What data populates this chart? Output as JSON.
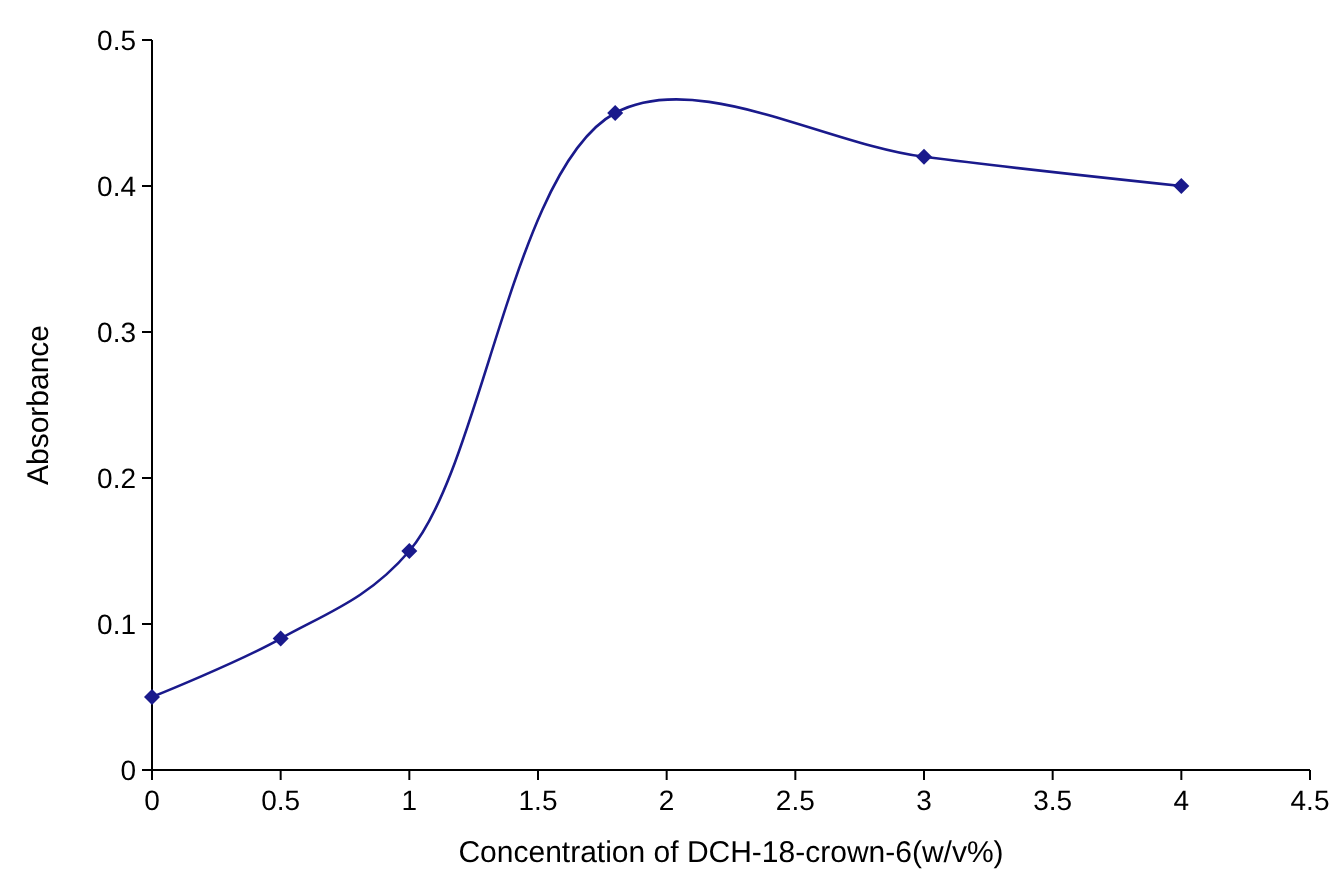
{
  "chart_data": {
    "type": "line",
    "xlabel": "Concentration of DCH-18-crown-6(w/v%)",
    "ylabel": "Absorbance",
    "x": [
      0,
      0.5,
      1,
      1.8,
      3,
      4
    ],
    "series": [
      {
        "color": "#1a1a8c",
        "values": [
          0.05,
          0.09,
          0.15,
          0.45,
          0.42,
          0.4
        ]
      }
    ],
    "xlim": [
      0,
      4.5
    ],
    "xticks": [
      0,
      0.5,
      1,
      1.5,
      2,
      2.5,
      3,
      3.5,
      4,
      4.5
    ],
    "ylim": [
      0,
      0.5
    ],
    "yticks": [
      0,
      0.1,
      0.2,
      0.3,
      0.4,
      0.5
    ],
    "marker": "diamond",
    "line_style": "solid"
  }
}
